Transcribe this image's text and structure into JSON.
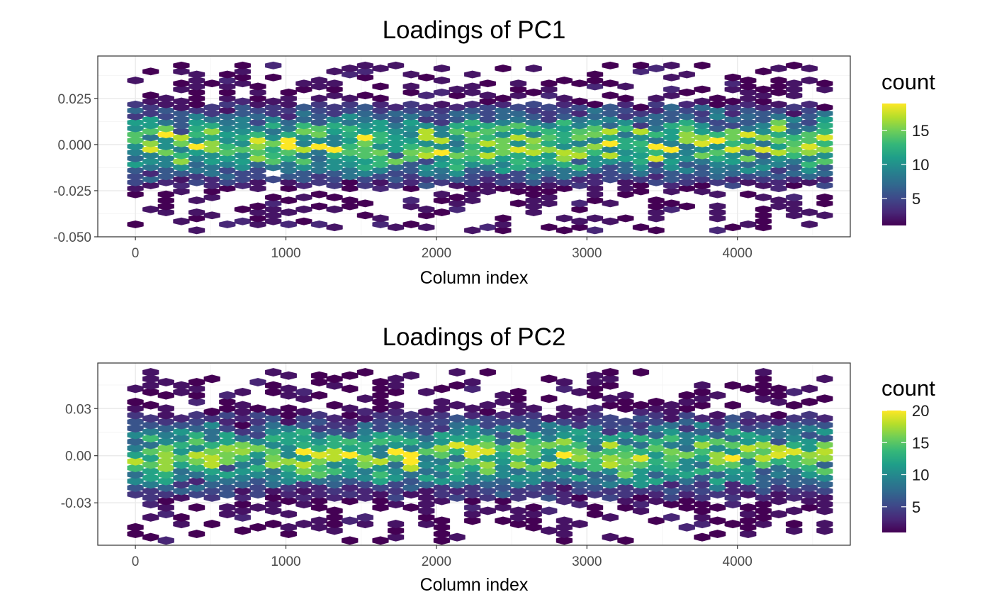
{
  "chart_data": [
    {
      "type": "heatmap",
      "subtype": "hexbin",
      "title": "Loadings of PC1",
      "xlabel": "Column index",
      "ylabel": "",
      "xlim": [
        -250,
        4750
      ],
      "ylim": [
        -0.05,
        0.048
      ],
      "x_ticks": [
        0,
        1000,
        2000,
        3000,
        4000
      ],
      "x_tick_labels": [
        "0",
        "1000",
        "2000",
        "3000",
        "4000"
      ],
      "y_ticks": [
        -0.05,
        -0.025,
        0.0,
        0.025
      ],
      "y_tick_labels": [
        "-0.050",
        "-0.025",
        "0.000",
        "0.025"
      ],
      "x_range": [
        0,
        4580
      ],
      "y_range": [
        -0.0465,
        0.0435
      ],
      "y_spread": 0.0125,
      "count_max": 19,
      "grid": true,
      "legend": {
        "title": "count",
        "position": "right",
        "count_range": [
          1,
          19
        ],
        "ticks": [
          5,
          10,
          15
        ],
        "tick_labels": [
          "5",
          "10",
          "15"
        ]
      },
      "colormap": "viridis"
    },
    {
      "type": "heatmap",
      "subtype": "hexbin",
      "title": "Loadings of PC2",
      "xlabel": "Column index",
      "ylabel": "",
      "xlim": [
        -250,
        4750
      ],
      "ylim": [
        -0.057,
        0.059
      ],
      "x_ticks": [
        0,
        1000,
        2000,
        3000,
        4000
      ],
      "x_tick_labels": [
        "0",
        "1000",
        "2000",
        "3000",
        "4000"
      ],
      "y_ticks": [
        -0.03,
        0.0,
        0.03
      ],
      "y_tick_labels": [
        "-0.03",
        "0.00",
        "0.03"
      ],
      "x_range": [
        0,
        4580
      ],
      "y_range": [
        -0.054,
        0.054
      ],
      "y_spread": 0.015,
      "count_max": 20,
      "grid": true,
      "legend": {
        "title": "count",
        "position": "right",
        "count_range": [
          1,
          20
        ],
        "ticks": [
          5,
          10,
          15,
          20
        ],
        "tick_labels": [
          "5",
          "10",
          "15",
          "20"
        ]
      },
      "colormap": "viridis"
    }
  ],
  "colors": {
    "viridis": [
      "#440154",
      "#482878",
      "#3e4989",
      "#31688e",
      "#26828e",
      "#1f9e89",
      "#35b779",
      "#6ece58",
      "#b5de2b",
      "#fde725"
    ],
    "panel_border": "#333333",
    "grid_major": "#ebebeb",
    "grid_minor": "#f5f5f5",
    "axis_text": "#4d4d4d"
  }
}
